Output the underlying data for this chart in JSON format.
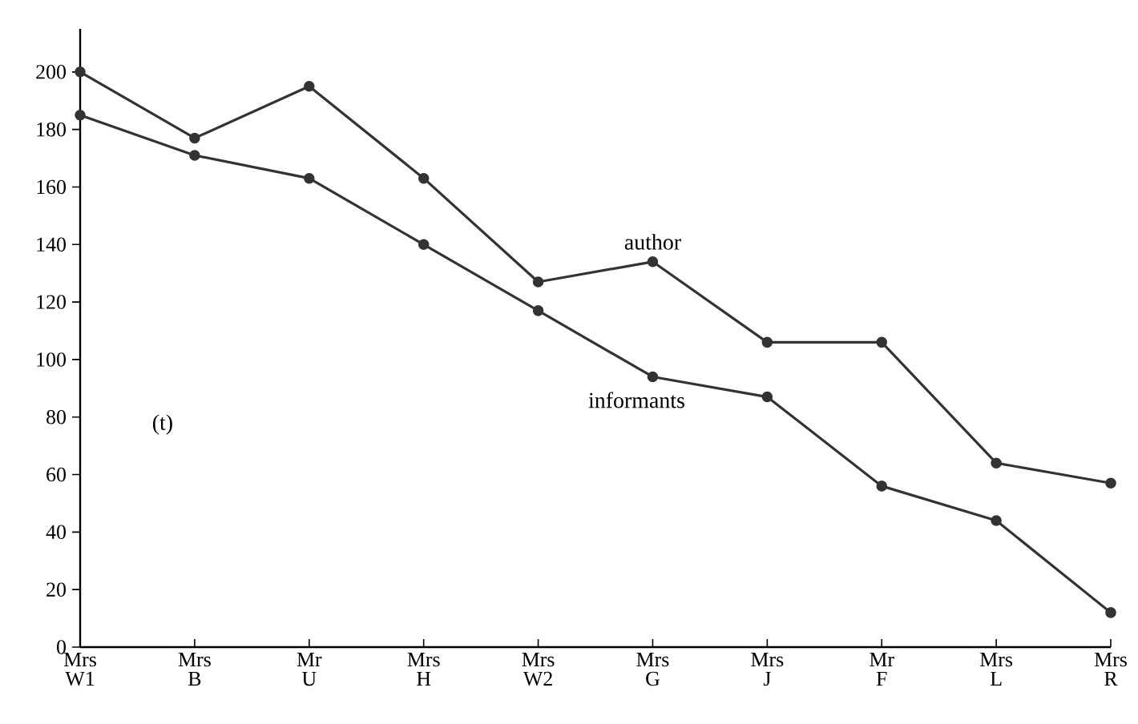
{
  "chart_data": {
    "type": "line",
    "categories": [
      "Mrs W1",
      "Mrs B",
      "Mr U",
      "Mrs H",
      "Mrs W2",
      "Mrs G",
      "Mrs J",
      "Mr F",
      "Mrs L",
      "Mrs R"
    ],
    "series": [
      {
        "name": "author",
        "color": "#333333",
        "values": [
          200,
          177,
          195,
          163,
          127,
          134,
          106,
          106,
          64,
          57
        ]
      },
      {
        "name": "informants",
        "color": "#333333",
        "values": [
          185,
          171,
          163,
          140,
          117,
          94,
          87,
          56,
          44,
          12
        ]
      }
    ],
    "ylim": [
      0,
      215
    ],
    "yticks": [
      0,
      20,
      40,
      60,
      80,
      100,
      120,
      140,
      160,
      180,
      200
    ],
    "marker": "circle",
    "line_style": "solid",
    "grid": false,
    "legend": false,
    "annotations": [
      "(t)"
    ]
  }
}
